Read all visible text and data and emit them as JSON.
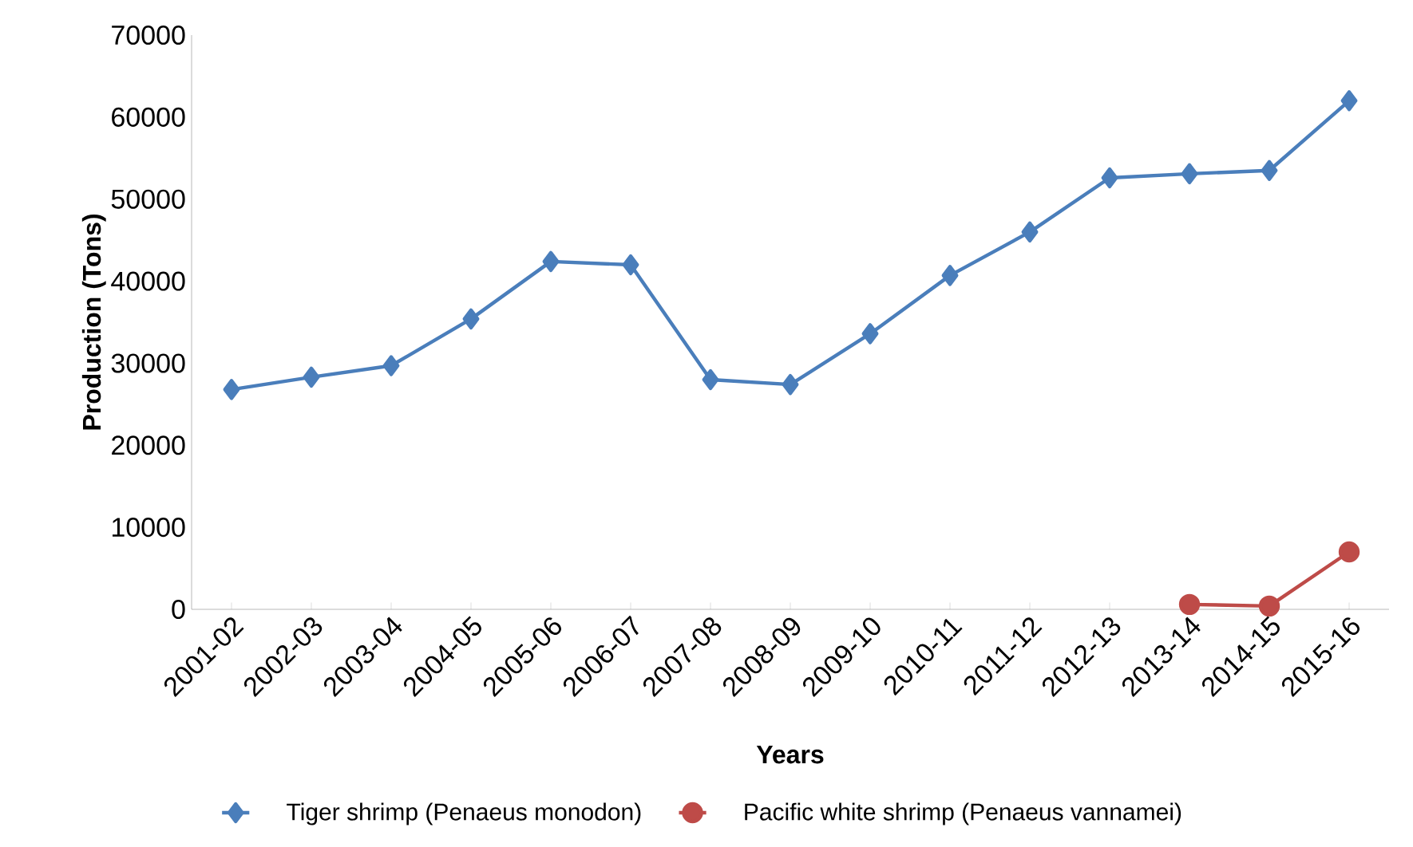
{
  "chart_data": {
    "type": "line",
    "xlabel": "Years",
    "ylabel": "Production (Tons)",
    "categories": [
      "2001-02",
      "2002-03",
      "2003-04",
      "2004-05",
      "2005-06",
      "2006-07",
      "2007-08",
      "2008-09",
      "2009-10",
      "2010-11",
      "2011-12",
      "2012-13",
      "2013-14",
      "2014-15",
      "2015-16"
    ],
    "series": [
      {
        "name": "Tiger shrimp (Penaeus monodon)",
        "color": "#4a7ebb",
        "marker": "diamond",
        "values": [
          26800,
          28300,
          29700,
          35400,
          42400,
          42000,
          28000,
          27400,
          33600,
          40700,
          46000,
          52600,
          53100,
          53500,
          62000
        ]
      },
      {
        "name": "Pacific white shrimp (Penaeus vannamei)",
        "color": "#be4b48",
        "marker": "circle",
        "values": [
          null,
          null,
          null,
          null,
          null,
          null,
          null,
          null,
          null,
          null,
          null,
          null,
          600,
          400,
          7000
        ]
      }
    ],
    "ylim": [
      0,
      70000
    ],
    "yticks": [
      0,
      10000,
      20000,
      30000,
      40000,
      50000,
      60000,
      70000
    ],
    "grid": false,
    "legend": "bottom",
    "line_style": "solid"
  }
}
